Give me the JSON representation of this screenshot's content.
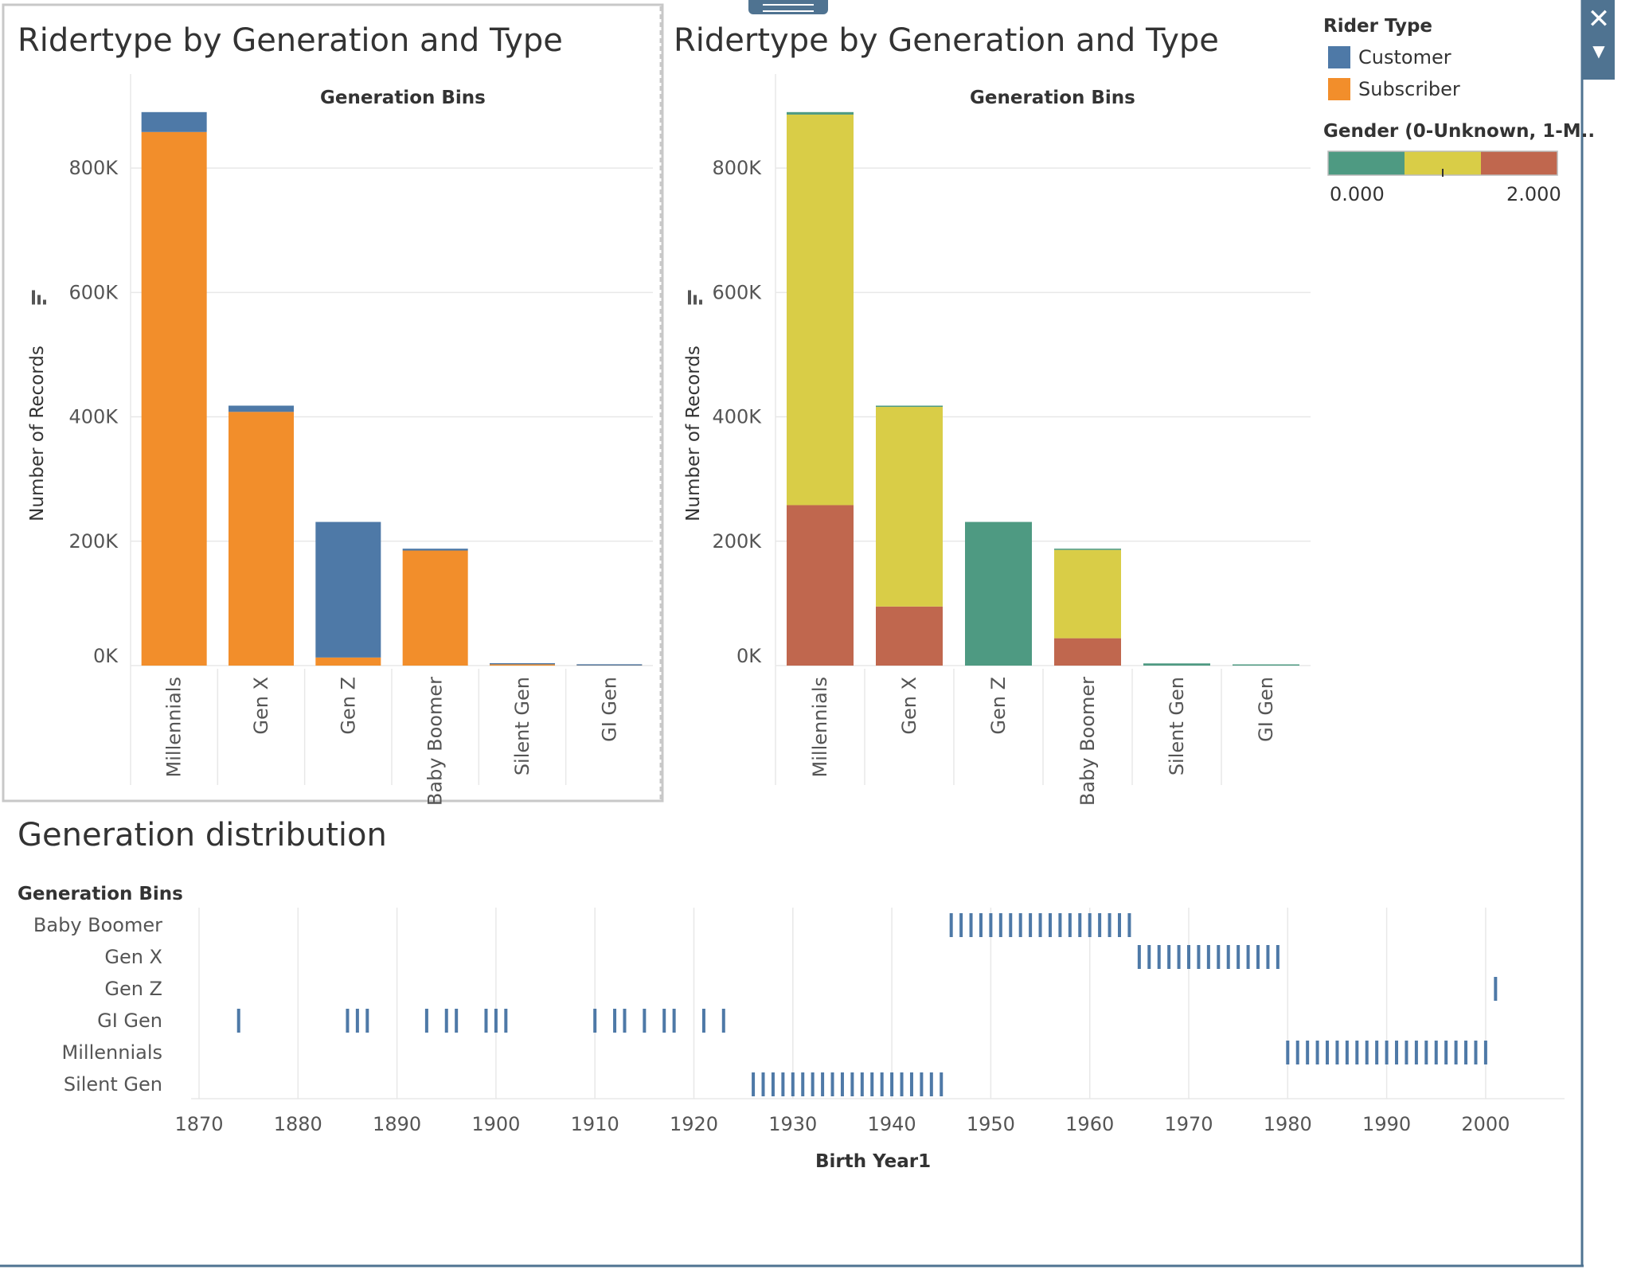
{
  "colors": {
    "customer": "#4e79a7",
    "subscriber": "#f28e2b",
    "gender_0": "#4e9a82",
    "gender_1": "#d9cd47",
    "gender_2": "#c0674e",
    "rug": "#4e79a7",
    "grid": "#e8e8e8",
    "axis_text": "#555555"
  },
  "ui": {
    "close_icon": "close-icon",
    "dropdown_icon": "chevron-down-icon"
  },
  "legend": {
    "rider_type_title": "Rider Type",
    "rider_types": [
      "Customer",
      "Subscriber"
    ],
    "gender_title": "Gender (0-Unknown, 1-M..",
    "gender_min_label": "0.000",
    "gender_max_label": "2.000"
  },
  "chart_data": [
    {
      "type": "bar",
      "title": "Ridertype by Generation and Type",
      "column_header": "Generation Bins",
      "ylabel": "Number of Records",
      "ylim": [
        0,
        900000
      ],
      "y_ticks": [
        0,
        200000,
        400000,
        600000,
        800000
      ],
      "y_tick_labels": [
        "0K",
        "200K",
        "400K",
        "600K",
        "800K"
      ],
      "categories": [
        "Millennials",
        "Gen X",
        "Gen Z",
        "Baby Boomer",
        "Silent Gen",
        "GI Gen"
      ],
      "series": [
        {
          "name": "Subscriber",
          "values": [
            858000,
            408000,
            13000,
            185000,
            2000,
            200
          ]
        },
        {
          "name": "Customer",
          "values": [
            32000,
            10000,
            218000,
            3000,
            1500,
            200
          ]
        }
      ]
    },
    {
      "type": "bar",
      "title": "Ridertype by Generation and Type",
      "column_header": "Generation Bins",
      "ylabel": "Number of Records",
      "ylim": [
        0,
        900000
      ],
      "y_ticks": [
        0,
        200000,
        400000,
        600000,
        800000
      ],
      "y_tick_labels": [
        "0K",
        "200K",
        "400K",
        "600K",
        "800K"
      ],
      "categories": [
        "Millennials",
        "Gen X",
        "Gen Z",
        "Baby Boomer",
        "Silent Gen",
        "GI Gen"
      ],
      "series": [
        {
          "name": "2",
          "values": [
            258000,
            95000,
            0,
            44000,
            0,
            0
          ]
        },
        {
          "name": "1",
          "values": [
            628000,
            321000,
            0,
            142000,
            0,
            0
          ]
        },
        {
          "name": "0",
          "values": [
            4000,
            2000,
            231000,
            2000,
            3500,
            400
          ]
        }
      ]
    },
    {
      "type": "scatter",
      "title": "Generation distribution",
      "row_header": "Generation Bins",
      "xlabel": "Birth Year1",
      "xlim": [
        1870,
        2008
      ],
      "x_ticks": [
        1870,
        1880,
        1890,
        1900,
        1910,
        1920,
        1930,
        1940,
        1950,
        1960,
        1970,
        1980,
        1990,
        2000
      ],
      "rows": [
        "Baby Boomer",
        "Gen X",
        "Gen Z",
        "GI Gen",
        "Millennials",
        "Silent Gen"
      ],
      "points": {
        "Baby Boomer": [
          1946,
          1947,
          1948,
          1949,
          1950,
          1951,
          1952,
          1953,
          1954,
          1955,
          1956,
          1957,
          1958,
          1959,
          1960,
          1961,
          1962,
          1963,
          1964
        ],
        "Gen X": [
          1965,
          1966,
          1967,
          1968,
          1969,
          1970,
          1971,
          1972,
          1973,
          1974,
          1975,
          1976,
          1977,
          1978,
          1979
        ],
        "Gen Z": [
          2001
        ],
        "GI Gen": [
          1874,
          1885,
          1886,
          1887,
          1893,
          1895,
          1896,
          1899,
          1900,
          1901,
          1910,
          1912,
          1913,
          1915,
          1917,
          1918,
          1921,
          1923
        ],
        "Millennials": [
          1980,
          1981,
          1982,
          1983,
          1984,
          1985,
          1986,
          1987,
          1988,
          1989,
          1990,
          1991,
          1992,
          1993,
          1994,
          1995,
          1996,
          1997,
          1998,
          1999,
          2000
        ],
        "Silent Gen": [
          1926,
          1927,
          1928,
          1929,
          1930,
          1931,
          1932,
          1933,
          1934,
          1935,
          1936,
          1937,
          1938,
          1939,
          1940,
          1941,
          1942,
          1943,
          1944,
          1945
        ]
      }
    }
  ]
}
